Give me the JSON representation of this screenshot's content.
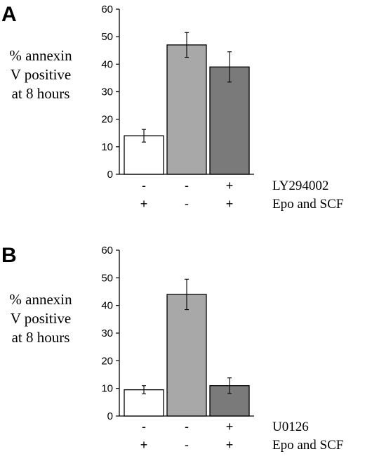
{
  "chart_data": [
    {
      "type": "bar",
      "panel_label": "A",
      "ylabel": [
        "% annexin",
        "V positive",
        "at 8 hours"
      ],
      "ylim": [
        0,
        60
      ],
      "yticks": [
        0,
        10,
        20,
        30,
        40,
        50,
        60
      ],
      "values": [
        14,
        47,
        39
      ],
      "errors": [
        2.3,
        4.5,
        5.5
      ],
      "bar_colors": [
        "#ffffff",
        "#a8a8a8",
        "#7a7a7a"
      ],
      "conditions": [
        {
          "label": "LY294002",
          "signs": [
            "-",
            "-",
            "+"
          ]
        },
        {
          "label": "Epo and SCF",
          "signs": [
            "+",
            "-",
            "+"
          ]
        }
      ]
    },
    {
      "type": "bar",
      "panel_label": "B",
      "ylabel": [
        "% annexin",
        "V positive",
        "at 8 hours"
      ],
      "ylim": [
        0,
        60
      ],
      "yticks": [
        0,
        10,
        20,
        30,
        40,
        50,
        60
      ],
      "values": [
        9.5,
        44,
        11
      ],
      "errors": [
        1.5,
        5.5,
        2.8
      ],
      "bar_colors": [
        "#ffffff",
        "#a8a8a8",
        "#7a7a7a"
      ],
      "conditions": [
        {
          "label": "U0126",
          "signs": [
            "-",
            "-",
            "+"
          ]
        },
        {
          "label": "Epo and SCF",
          "signs": [
            "+",
            "-",
            "+"
          ]
        }
      ]
    }
  ]
}
